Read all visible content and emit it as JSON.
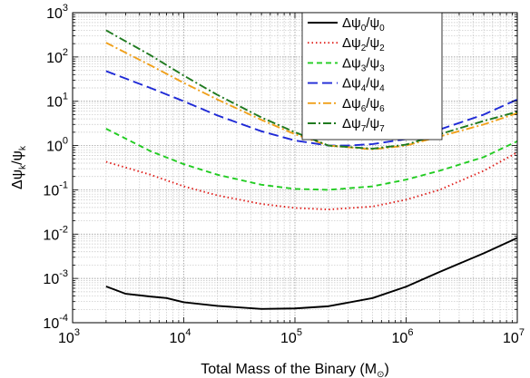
{
  "chart_data": {
    "type": "line",
    "x_scale": "log",
    "y_scale": "log",
    "xlim": [
      1000,
      10000000
    ],
    "ylim": [
      0.0001,
      1000
    ],
    "grid": true,
    "legend_position": "top-right",
    "xlabel": "Total Mass of the Binary (M⊙)",
    "ylabel": "Δψk/ψk",
    "xlabel_parts": {
      "main": "Total Mass of the Binary (M",
      "sub": "⊙",
      "tail": ")"
    },
    "ylabel_parts": {
      "a": "Δψ",
      "a_sub": "k",
      "b": "/ψ",
      "b_sub": "k"
    },
    "x_ticks": [
      {
        "value": 1000,
        "base": "10",
        "exp": "3"
      },
      {
        "value": 10000,
        "base": "10",
        "exp": "4"
      },
      {
        "value": 100000,
        "base": "10",
        "exp": "5"
      },
      {
        "value": 1000000,
        "base": "10",
        "exp": "6"
      },
      {
        "value": 10000000,
        "base": "10",
        "exp": "7"
      }
    ],
    "y_ticks": [
      {
        "value": 0.0001,
        "base": "10",
        "exp": "-4"
      },
      {
        "value": 0.001,
        "base": "10",
        "exp": "-3"
      },
      {
        "value": 0.01,
        "base": "10",
        "exp": "-2"
      },
      {
        "value": 0.1,
        "base": "10",
        "exp": "-1"
      },
      {
        "value": 1,
        "base": "10",
        "exp": "0"
      },
      {
        "value": 10,
        "base": "10",
        "exp": "1"
      },
      {
        "value": 100,
        "base": "10",
        "exp": "2"
      },
      {
        "value": 1000,
        "base": "10",
        "exp": "3"
      }
    ],
    "series": [
      {
        "name": "Δψ0/ψ0",
        "label_parts": [
          "Δψ",
          "0",
          "/ψ",
          "0"
        ],
        "color": "#000000",
        "style": "solid",
        "x": [
          2000,
          3000,
          5000,
          7000,
          10000,
          20000,
          50000,
          100000,
          200000,
          500000,
          1000000,
          2000000,
          5000000,
          10000000
        ],
        "y": [
          0.00066,
          0.00045,
          0.00039,
          0.00036,
          0.00029,
          0.00024,
          0.000205,
          0.00021,
          0.000235,
          0.00036,
          0.00065,
          0.0014,
          0.0037,
          0.0082
        ]
      },
      {
        "name": "Δψ2/ψ2",
        "label_parts": [
          "Δψ",
          "2",
          "/ψ",
          "2"
        ],
        "color": "#e0201c",
        "style": "dotted",
        "x": [
          2000,
          5000,
          10000,
          20000,
          50000,
          100000,
          200000,
          500000,
          1000000,
          2000000,
          5000000,
          10000000
        ],
        "y": [
          0.43,
          0.22,
          0.12,
          0.075,
          0.048,
          0.039,
          0.036,
          0.042,
          0.06,
          0.1,
          0.27,
          0.7
        ]
      },
      {
        "name": "Δψ3/ψ3",
        "label_parts": [
          "Δψ",
          "3",
          "/ψ",
          "3"
        ],
        "color": "#22cc22",
        "style": "dashed",
        "x": [
          2000,
          5000,
          10000,
          20000,
          50000,
          100000,
          200000,
          500000,
          1000000,
          2000000,
          5000000,
          10000000
        ],
        "y": [
          2.4,
          0.75,
          0.38,
          0.22,
          0.13,
          0.105,
          0.1,
          0.12,
          0.17,
          0.27,
          0.55,
          1.25
        ]
      },
      {
        "name": "Δψ4/ψ4",
        "label_parts": [
          "Δψ",
          "4",
          "/ψ",
          "4"
        ],
        "color": "#1f2ad6",
        "style": "longdash",
        "x": [
          2000,
          5000,
          10000,
          20000,
          50000,
          100000,
          200000,
          300000,
          500000,
          1000000,
          2000000,
          5000000,
          10000000
        ],
        "y": [
          48,
          20,
          10,
          4.8,
          2.1,
          1.3,
          1.0,
          1.0,
          1.08,
          1.4,
          2.3,
          5.0,
          11
        ]
      },
      {
        "name": "Δψ6/ψ6",
        "label_parts": [
          "Δψ",
          "6",
          "/ψ",
          "6"
        ],
        "color": "#f0a01a",
        "style": "dashdot",
        "x": [
          2000,
          5000,
          10000,
          20000,
          50000,
          100000,
          200000,
          500000,
          1000000,
          2000000,
          5000000,
          10000000
        ],
        "y": [
          210,
          65,
          26,
          11,
          3.8,
          1.8,
          1.0,
          0.82,
          1.0,
          1.6,
          3.0,
          5.4
        ]
      },
      {
        "name": "Δψ7/ψ7",
        "label_parts": [
          "Δψ",
          "7",
          "/ψ",
          "7"
        ],
        "color": "#1f7a1f",
        "style": "dashdot",
        "x": [
          2000,
          5000,
          10000,
          20000,
          50000,
          100000,
          200000,
          500000,
          1000000,
          2000000,
          5000000,
          10000000
        ],
        "y": [
          400,
          110,
          38,
          14,
          4.3,
          2.0,
          1.0,
          0.85,
          1.05,
          1.8,
          3.6,
          5.8
        ]
      }
    ]
  }
}
